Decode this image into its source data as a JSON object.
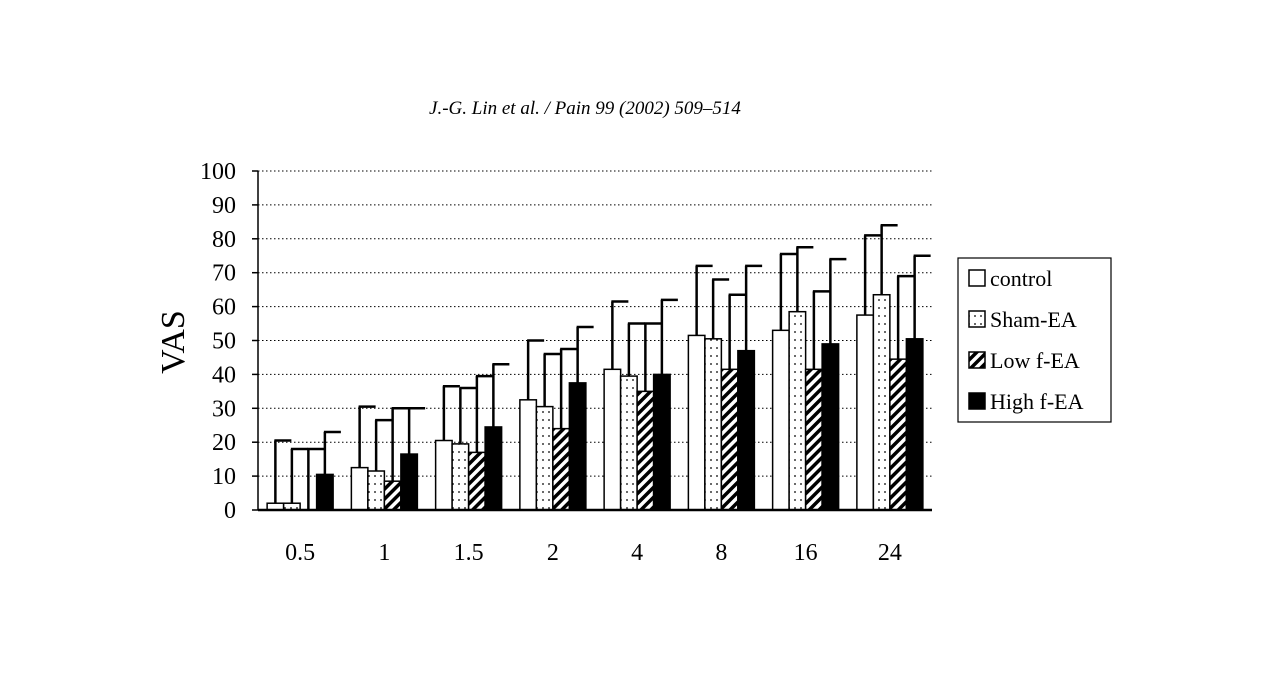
{
  "header": {
    "citation": "J.-G. Lin et al. / Pain 99 (2002) 509–514"
  },
  "chart_data": {
    "type": "bar",
    "title": "",
    "xlabel": "",
    "ylabel": "VAS",
    "ylim": [
      0,
      100
    ],
    "yticks": [
      0,
      10,
      20,
      30,
      40,
      50,
      60,
      70,
      80,
      90,
      100
    ],
    "grid": "horizontal dotted",
    "legend_position": "right",
    "categories": [
      "0.5",
      "1",
      "1.5",
      "2",
      "4",
      "8",
      "16",
      "24"
    ],
    "series": [
      {
        "name": "control",
        "pattern": "white",
        "values": [
          2,
          12.5,
          20.5,
          32.5,
          41.5,
          51.5,
          53,
          57.5
        ],
        "errors": [
          18.5,
          18,
          16,
          17.5,
          20,
          20.5,
          22.5,
          23.5
        ]
      },
      {
        "name": "Sham-EA",
        "pattern": "dots",
        "values": [
          2,
          11.5,
          19.5,
          30.5,
          39.5,
          50.5,
          58.5,
          63.5
        ],
        "errors": [
          16,
          15,
          16.5,
          15.5,
          15.5,
          17.5,
          19,
          20.5
        ]
      },
      {
        "name": "Low f-EA",
        "pattern": "hatch",
        "values": [
          0,
          8.5,
          17,
          24,
          35,
          41.5,
          41.5,
          44.5
        ],
        "errors": [
          18,
          21.5,
          22.5,
          23.5,
          20,
          22,
          23,
          24.5
        ]
      },
      {
        "name": "High f-EA",
        "pattern": "black",
        "values": [
          10.5,
          16.5,
          24.5,
          37.5,
          40,
          47,
          49,
          50.5
        ],
        "errors": [
          12.5,
          13.5,
          18.5,
          16.5,
          22,
          25,
          25,
          24.5
        ]
      }
    ]
  }
}
